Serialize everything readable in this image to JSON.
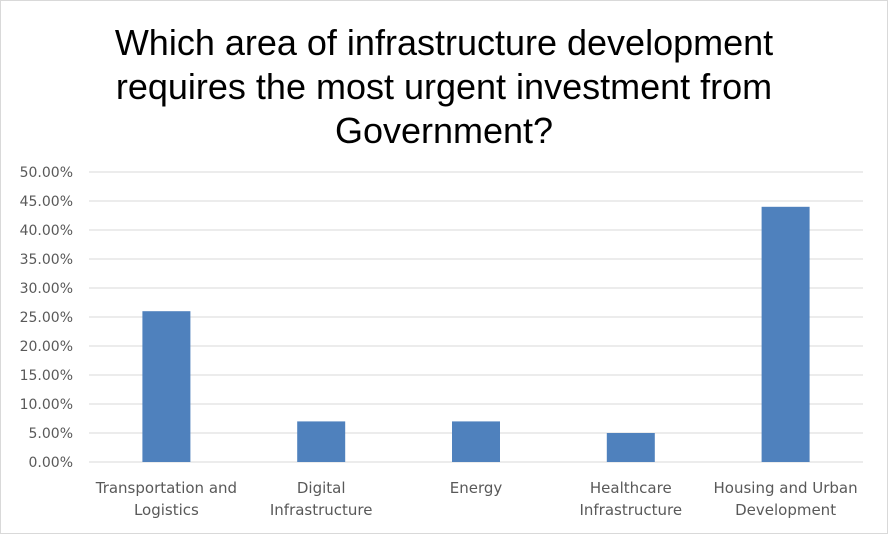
{
  "chart_data": {
    "type": "bar",
    "title_lines": [
      "Which area of infrastructure development",
      "requires the most urgent investment from",
      "Government?"
    ],
    "categories": [
      [
        "Transportation and",
        "Logistics"
      ],
      [
        "Digital",
        "Infrastructure"
      ],
      [
        "Energy"
      ],
      [
        "Healthcare",
        "Infrastructure"
      ],
      [
        "Housing and Urban",
        "Development"
      ]
    ],
    "values": [
      26,
      7,
      7,
      5,
      44
    ],
    "ylim": [
      0,
      50
    ],
    "yticks": [
      "0.00%",
      "5.00%",
      "10.00%",
      "15.00%",
      "20.00%",
      "25.00%",
      "30.00%",
      "35.00%",
      "40.00%",
      "45.00%",
      "50.00%"
    ],
    "xlabel": "",
    "ylabel": "",
    "bar_color": "#4f81bd",
    "grid_color": "#d9d9d9",
    "grid": true
  }
}
